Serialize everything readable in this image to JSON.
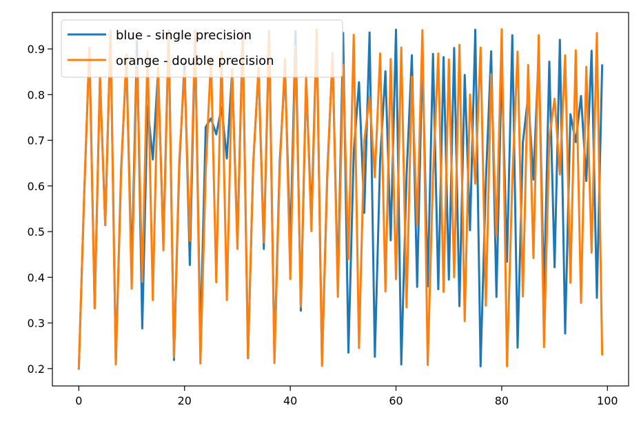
{
  "chart_data": {
    "type": "line",
    "title": "",
    "xlabel": "",
    "ylabel": "",
    "xlim": [
      -5,
      104
    ],
    "ylim": [
      0.162,
      0.98
    ],
    "xticks": [
      0,
      20,
      40,
      60,
      80,
      100
    ],
    "xtick_labels": [
      "0",
      "20",
      "40",
      "60",
      "80",
      "100"
    ],
    "yticks": [
      0.2,
      0.3,
      0.4,
      0.5,
      0.6,
      0.7,
      0.8,
      0.9
    ],
    "ytick_labels": [
      "0.2",
      "0.3",
      "0.4",
      "0.5",
      "0.6",
      "0.7",
      "0.8",
      "0.9"
    ],
    "grid": false,
    "legend": "top-left",
    "colors": {
      "blue": "#1f77b4",
      "orange": "#ff7f0e"
    },
    "x": [
      0,
      1,
      2,
      3,
      4,
      5,
      6,
      7,
      8,
      9,
      10,
      11,
      12,
      13,
      14,
      15,
      16,
      17,
      18,
      19,
      20,
      21,
      22,
      23,
      24,
      25,
      26,
      27,
      28,
      29,
      30,
      31,
      32,
      33,
      34,
      35,
      36,
      37,
      38,
      39,
      40,
      41,
      42,
      43,
      44,
      45,
      46,
      47,
      48,
      49,
      50,
      51,
      52,
      53,
      54,
      55,
      56,
      57,
      58,
      59,
      60,
      61,
      62,
      63,
      64,
      65,
      66,
      67,
      68,
      69,
      70,
      71,
      72,
      73,
      74,
      75,
      76,
      77,
      78,
      79,
      80,
      81,
      82,
      83,
      84,
      85,
      86,
      87,
      88,
      89,
      90,
      91,
      92,
      93,
      94,
      95,
      96,
      97,
      98,
      99
    ],
    "series": [
      {
        "name": "blue - single precision",
        "values": [
          0.2,
          0.576,
          0.903,
          0.332,
          0.839,
          0.514,
          0.94,
          0.213,
          0.636,
          0.874,
          0.417,
          0.917,
          0.288,
          0.775,
          0.658,
          0.852,
          0.476,
          0.94,
          0.219,
          0.64,
          0.87,
          0.427,
          0.925,
          0.262,
          0.729,
          0.748,
          0.713,
          0.772,
          0.66,
          0.851,
          0.478,
          0.939,
          0.223,
          0.651,
          0.857,
          0.462,
          0.937,
          0.225,
          0.652,
          0.855,
          0.467,
          0.939,
          0.327,
          0.833,
          0.529,
          0.942,
          0.21,
          0.627,
          0.886,
          0.383,
          0.935,
          0.235,
          0.672,
          0.827,
          0.541,
          0.936,
          0.226,
          0.657,
          0.851,
          0.481,
          0.942,
          0.209,
          0.624,
          0.886,
          0.379,
          0.887,
          0.38,
          0.889,
          0.374,
          0.882,
          0.395,
          0.902,
          0.337,
          0.843,
          0.503,
          0.942,
          0.205,
          0.61,
          0.895,
          0.357,
          0.867,
          0.434,
          0.93,
          0.246,
          0.695,
          0.798,
          0.614,
          0.892,
          0.361,
          0.872,
          0.422,
          0.92,
          0.277,
          0.757,
          0.696,
          0.797,
          0.611,
          0.896,
          0.355,
          0.864
        ]
      },
      {
        "name": "orange - double precision",
        "values": [
          0.2,
          0.576,
          0.903,
          0.332,
          0.839,
          0.514,
          0.94,
          0.209,
          0.627,
          0.887,
          0.375,
          0.882,
          0.39,
          0.895,
          0.35,
          0.859,
          0.459,
          0.936,
          0.225,
          0.656,
          0.851,
          0.48,
          0.941,
          0.211,
          0.631,
          0.882,
          0.389,
          0.894,
          0.35,
          0.856,
          0.462,
          0.937,
          0.224,
          0.65,
          0.859,
          0.476,
          0.94,
          0.212,
          0.634,
          0.878,
          0.396,
          0.907,
          0.336,
          0.842,
          0.501,
          0.942,
          0.206,
          0.618,
          0.891,
          0.357,
          0.865,
          0.44,
          0.931,
          0.245,
          0.699,
          0.794,
          0.619,
          0.89,
          0.369,
          0.878,
          0.396,
          0.903,
          0.334,
          0.839,
          0.515,
          0.941,
          0.208,
          0.622,
          0.89,
          0.368,
          0.877,
          0.4,
          0.909,
          0.304,
          0.8,
          0.605,
          0.903,
          0.338,
          0.845,
          0.49,
          0.943,
          0.205,
          0.612,
          0.894,
          0.358,
          0.865,
          0.442,
          0.93,
          0.247,
          0.704,
          0.791,
          0.625,
          0.886,
          0.388,
          0.897,
          0.344,
          0.861,
          0.454,
          0.935,
          0.231
        ]
      }
    ]
  }
}
